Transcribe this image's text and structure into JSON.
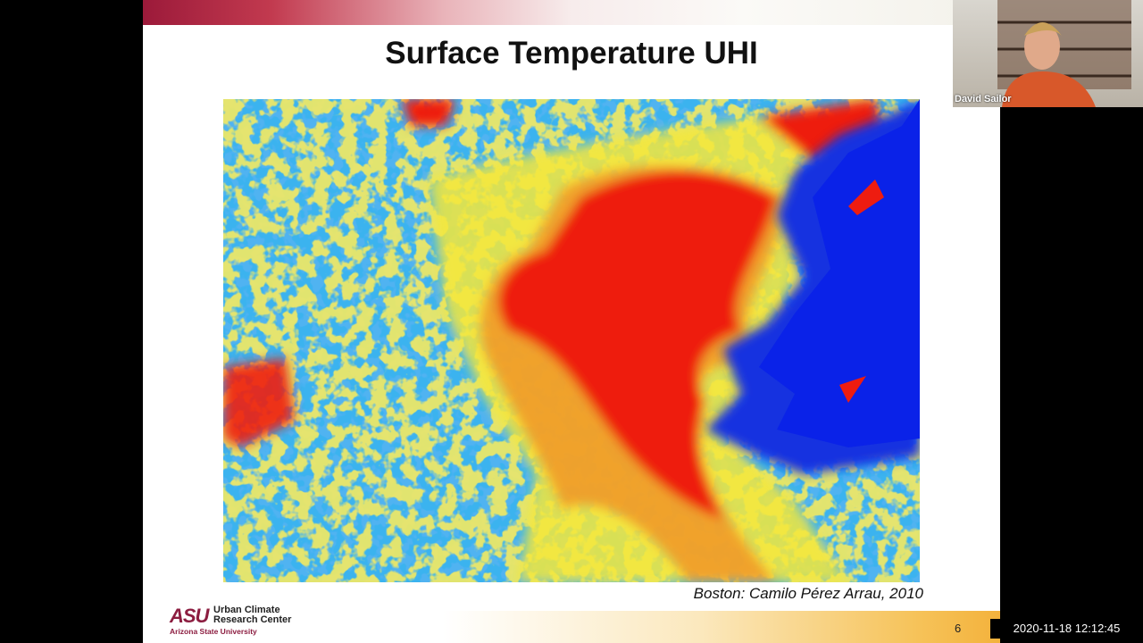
{
  "slide": {
    "title": "Surface Temperature UHI",
    "caption": "Boston: Camilo Pérez Arrau, 2010",
    "logo": {
      "mark": "ASU",
      "line1": "Urban Climate",
      "line2": "Research Center",
      "university": "Arizona State University"
    },
    "page_number": "6"
  },
  "video": {
    "participant": "David Sailor"
  },
  "timestamp": "2020-11-18  12:12:45"
}
